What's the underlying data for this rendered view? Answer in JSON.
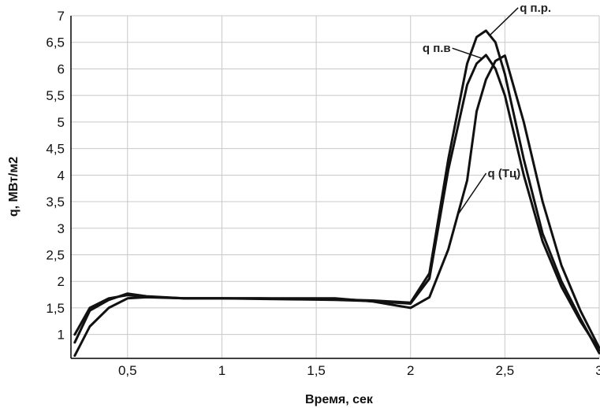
{
  "chart_data": {
    "type": "line",
    "title": "",
    "xlabel": "Время, сек",
    "ylabel": "q, МВт/м2",
    "xlim": [
      0.2,
      3.0
    ],
    "ylim": [
      0.55,
      7.0
    ],
    "grid": true,
    "x_ticks": [
      {
        "value": 0.5,
        "label": "0,5"
      },
      {
        "value": 1.0,
        "label": "1"
      },
      {
        "value": 1.5,
        "label": "1,5"
      },
      {
        "value": 2.0,
        "label": "2"
      },
      {
        "value": 2.5,
        "label": "2,5"
      },
      {
        "value": 3.0,
        "label": "3"
      }
    ],
    "y_ticks": [
      {
        "value": 1.0,
        "label": "1"
      },
      {
        "value": 1.5,
        "label": "1,5"
      },
      {
        "value": 2.0,
        "label": "2"
      },
      {
        "value": 2.5,
        "label": "2,5"
      },
      {
        "value": 3.0,
        "label": "3"
      },
      {
        "value": 3.5,
        "label": "3,5"
      },
      {
        "value": 4.0,
        "label": "4"
      },
      {
        "value": 4.5,
        "label": "4,5"
      },
      {
        "value": 5.0,
        "label": "5"
      },
      {
        "value": 5.5,
        "label": "5,5"
      },
      {
        "value": 6.0,
        "label": "6"
      },
      {
        "value": 6.5,
        "label": "6,5"
      },
      {
        "value": 7.0,
        "label": "7"
      }
    ],
    "series": [
      {
        "name": "q п.р.",
        "x": [
          0.22,
          0.3,
          0.4,
          0.5,
          0.6,
          0.8,
          1.0,
          1.2,
          1.4,
          1.6,
          1.8,
          2.0,
          2.1,
          2.2,
          2.3,
          2.35,
          2.4,
          2.45,
          2.5,
          2.6,
          2.7,
          2.8,
          2.9,
          3.0
        ],
        "y": [
          0.85,
          1.45,
          1.65,
          1.77,
          1.72,
          1.68,
          1.68,
          1.68,
          1.67,
          1.66,
          1.64,
          1.6,
          2.15,
          4.3,
          6.1,
          6.6,
          6.72,
          6.5,
          5.9,
          4.3,
          2.9,
          2.0,
          1.3,
          0.65
        ]
      },
      {
        "name": "q п.в",
        "x": [
          0.22,
          0.3,
          0.4,
          0.5,
          0.6,
          0.8,
          1.0,
          1.2,
          1.4,
          1.6,
          1.8,
          2.0,
          2.1,
          2.2,
          2.3,
          2.35,
          2.4,
          2.45,
          2.5,
          2.6,
          2.7,
          2.8,
          2.9,
          3.0
        ],
        "y": [
          1.0,
          1.5,
          1.68,
          1.74,
          1.71,
          1.68,
          1.68,
          1.67,
          1.66,
          1.65,
          1.63,
          1.58,
          2.05,
          4.1,
          5.7,
          6.1,
          6.26,
          6.0,
          5.5,
          4.0,
          2.75,
          1.9,
          1.25,
          0.7
        ]
      },
      {
        "name": "q (Тц)",
        "x": [
          0.22,
          0.3,
          0.4,
          0.5,
          0.6,
          0.8,
          1.0,
          1.2,
          1.4,
          1.6,
          1.8,
          2.0,
          2.1,
          2.2,
          2.3,
          2.35,
          2.4,
          2.45,
          2.5,
          2.6,
          2.7,
          2.8,
          2.9,
          3.0
        ],
        "y": [
          0.6,
          1.15,
          1.5,
          1.68,
          1.7,
          1.68,
          1.68,
          1.68,
          1.68,
          1.68,
          1.62,
          1.5,
          1.7,
          2.6,
          3.9,
          5.2,
          5.8,
          6.15,
          6.25,
          5.0,
          3.5,
          2.3,
          1.45,
          0.75
        ]
      }
    ],
    "annotations": [
      {
        "text": "q п.р.",
        "series": 0,
        "at_x": 2.42
      },
      {
        "text": "q п.в",
        "series": 1,
        "at_x": 2.38
      },
      {
        "text": "q (Тц)",
        "series": 2,
        "at_x": 2.25
      }
    ]
  }
}
